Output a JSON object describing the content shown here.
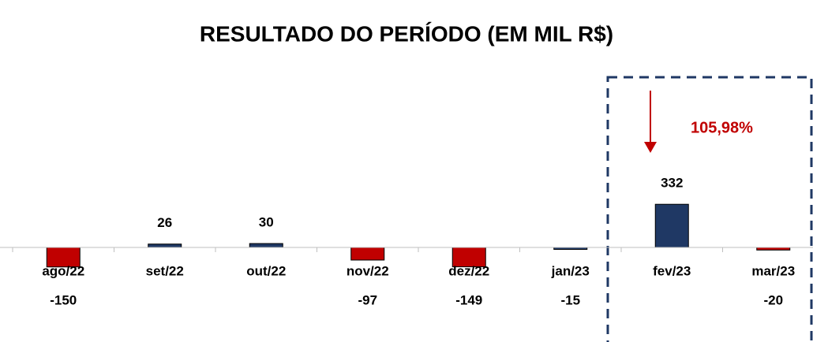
{
  "chart_data": {
    "type": "bar",
    "title": "RESULTADO DO PERÍODO (EM MIL R$)",
    "categories": [
      "ago/22",
      "set/22",
      "out/22",
      "nov/22",
      "dez/22",
      "jan/23",
      "fev/23",
      "mar/23"
    ],
    "values": [
      -150,
      26,
      30,
      -97,
      -149,
      -15,
      332,
      -20
    ],
    "colors": [
      "#c00000",
      "#1f3864",
      "#1f3864",
      "#c00000",
      "#c00000",
      "#1f3864",
      "#1f3864",
      "#c00000"
    ],
    "ylim": [
      -700,
      1300
    ],
    "annotation": "105,98%"
  }
}
